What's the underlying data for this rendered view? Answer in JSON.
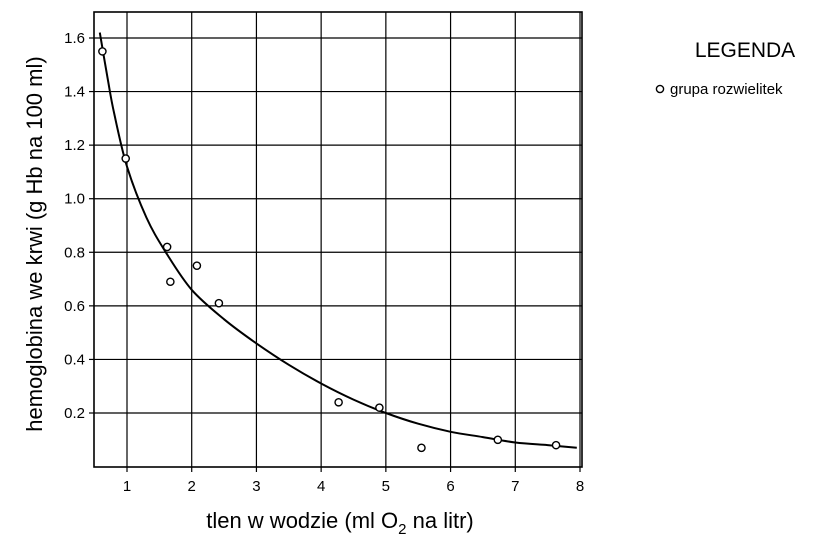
{
  "chart_data": {
    "type": "scatter",
    "xlabel_prefix": "tlen w wodzie (ml O",
    "xlabel_sub": "2",
    "xlabel_suffix": " na litr)",
    "ylabel": "hemoglobina we krwi (g Hb na 100 ml)",
    "xlim": [
      0.4,
      8
    ],
    "ylim": [
      0,
      1.7
    ],
    "x_ticks": [
      1,
      2,
      3,
      4,
      5,
      6,
      7,
      8
    ],
    "y_ticks": [
      0.2,
      0.4,
      0.6,
      0.8,
      1.0,
      1.2,
      1.4,
      1.6
    ],
    "x_tick_labels": [
      "1",
      "2",
      "3",
      "4",
      "5",
      "6",
      "7",
      "8"
    ],
    "y_tick_labels": [
      "0.2",
      "0.4",
      "0.6",
      "0.8",
      "1.0",
      "1.2",
      "1.4",
      "1.6"
    ],
    "grid": true,
    "legend": {
      "title": "LEGENDA",
      "position": "right",
      "entries": [
        {
          "marker": "open-circle",
          "label": "grupa rozwielitek"
        }
      ]
    },
    "series": [
      {
        "name": "grupa rozwielitek",
        "points": [
          {
            "x": 0.62,
            "y": 1.55
          },
          {
            "x": 0.98,
            "y": 1.15
          },
          {
            "x": 1.62,
            "y": 0.82
          },
          {
            "x": 1.67,
            "y": 0.69
          },
          {
            "x": 2.08,
            "y": 0.75
          },
          {
            "x": 2.42,
            "y": 0.61
          },
          {
            "x": 4.27,
            "y": 0.24
          },
          {
            "x": 4.9,
            "y": 0.22
          },
          {
            "x": 5.55,
            "y": 0.07
          },
          {
            "x": 6.73,
            "y": 0.1
          },
          {
            "x": 7.63,
            "y": 0.08
          }
        ]
      }
    ],
    "trend_curve": {
      "points": [
        {
          "x": 0.58,
          "y": 1.62
        },
        {
          "x": 0.7,
          "y": 1.45
        },
        {
          "x": 0.8,
          "y": 1.32
        },
        {
          "x": 1.0,
          "y": 1.12
        },
        {
          "x": 1.3,
          "y": 0.93
        },
        {
          "x": 1.6,
          "y": 0.8
        },
        {
          "x": 2.0,
          "y": 0.66
        },
        {
          "x": 2.5,
          "y": 0.55
        },
        {
          "x": 3.0,
          "y": 0.46
        },
        {
          "x": 3.5,
          "y": 0.38
        },
        {
          "x": 4.0,
          "y": 0.31
        },
        {
          "x": 4.5,
          "y": 0.25
        },
        {
          "x": 5.0,
          "y": 0.2
        },
        {
          "x": 5.5,
          "y": 0.16
        },
        {
          "x": 6.0,
          "y": 0.13
        },
        {
          "x": 6.5,
          "y": 0.11
        },
        {
          "x": 7.0,
          "y": 0.09
        },
        {
          "x": 7.5,
          "y": 0.08
        },
        {
          "x": 7.95,
          "y": 0.07
        }
      ]
    }
  }
}
